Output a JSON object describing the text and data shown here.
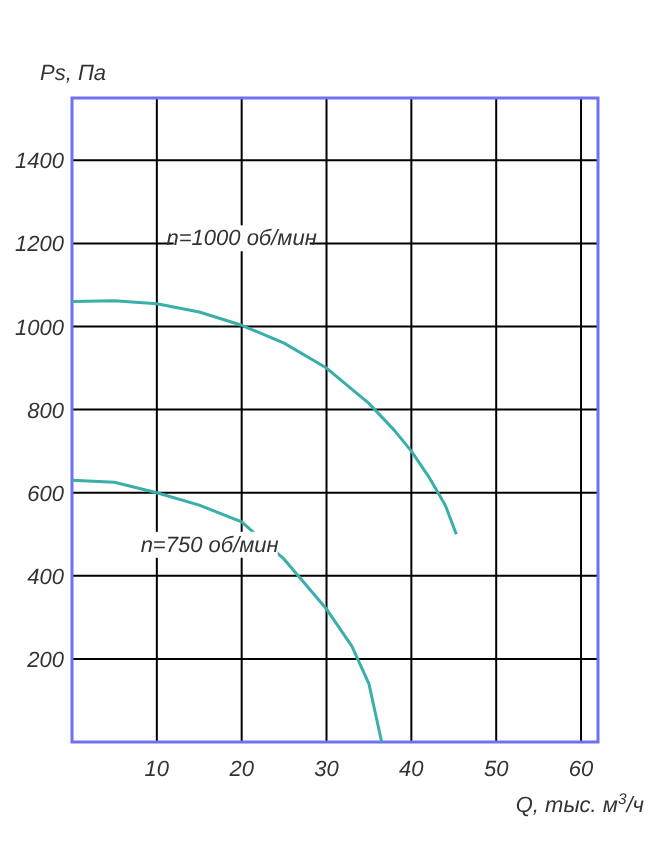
{
  "chart_data": {
    "type": "line",
    "xlabel": "Q, тыс. м$^{3}$/ч",
    "ylabel": "Ps, Па",
    "xlim": [
      0,
      62
    ],
    "ylim": [
      0,
      1550
    ],
    "xticks": [
      10,
      20,
      30,
      40,
      50,
      60
    ],
    "yticks": [
      200,
      400,
      600,
      800,
      1000,
      1200,
      1400
    ],
    "grid": true,
    "marker": "none",
    "line_style": "solid",
    "series": [
      {
        "name": "n=1000 об/мин",
        "color": "#3aaea8",
        "x": [
          0,
          5,
          10,
          15,
          20,
          25,
          30,
          35,
          38,
          40,
          42,
          44,
          45.3
        ],
        "values": [
          1060,
          1062,
          1055,
          1035,
          1003,
          960,
          900,
          815,
          750,
          700,
          640,
          570,
          500
        ]
      },
      {
        "name": "n=750 об/мин",
        "color": "#3aaea8",
        "x": [
          0,
          5,
          10,
          15,
          20,
          25,
          30,
          33,
          35,
          36.5
        ],
        "values": [
          630,
          625,
          600,
          570,
          530,
          440,
          320,
          230,
          140,
          0
        ]
      }
    ]
  }
}
